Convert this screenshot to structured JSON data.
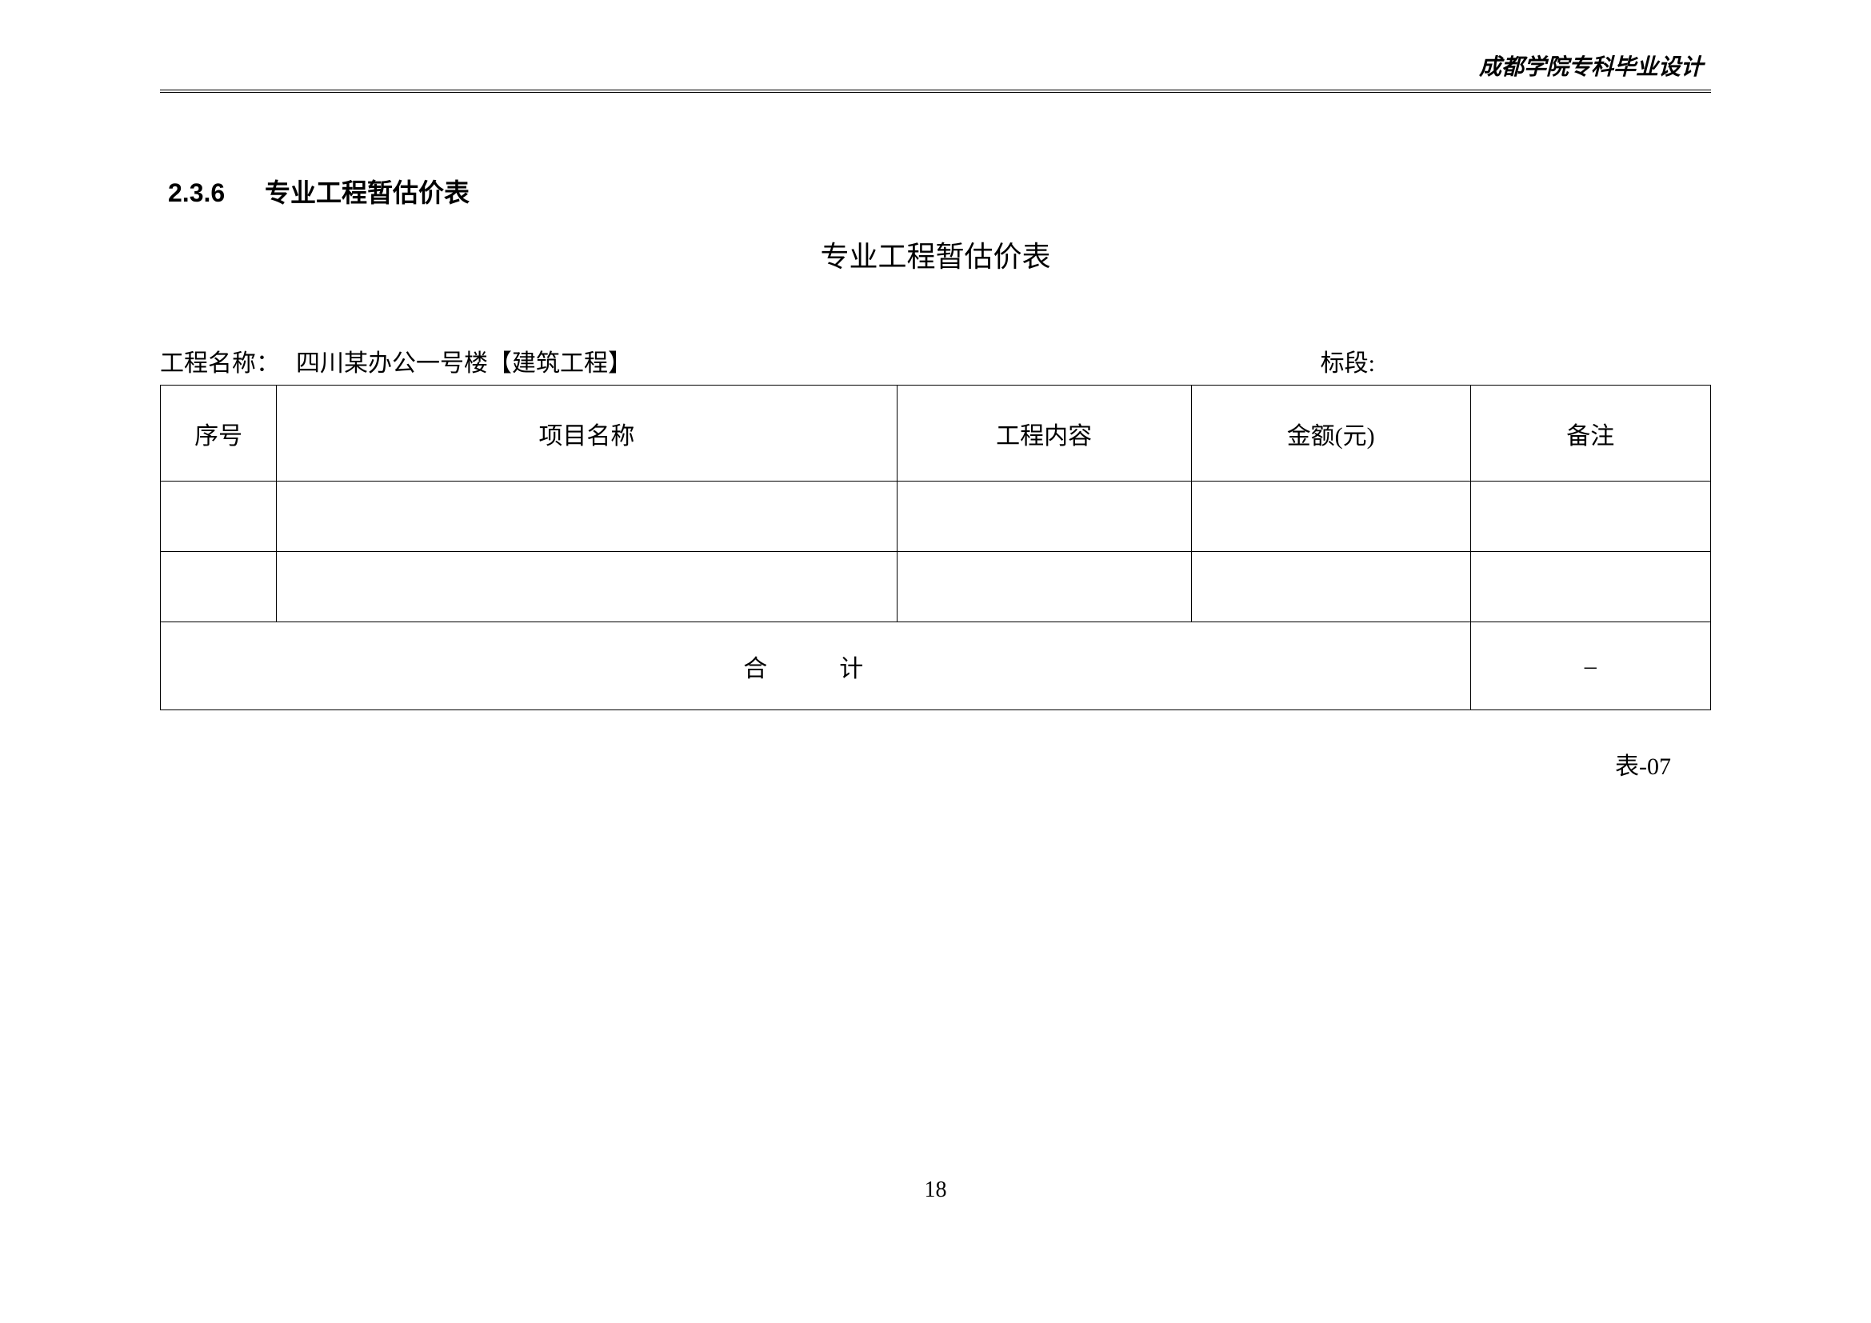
{
  "header": {
    "institution": "成都学院专科毕业设计"
  },
  "section": {
    "number": "2.3.6",
    "title": "专业工程暂估价表"
  },
  "table": {
    "title": "专业工程暂估价表",
    "meta": {
      "project_label": "工程名称：",
      "project_value": "四川某办公一号楼【建筑工程】",
      "section_label": "标段:"
    },
    "columns": [
      "序号",
      "项目名称",
      "工程内容",
      "金额(元)",
      "备注"
    ],
    "rows": [
      [
        "",
        "",
        "",
        "",
        ""
      ],
      [
        "",
        "",
        "",
        "",
        ""
      ]
    ],
    "total": {
      "label": "合　计",
      "amount": "",
      "remark": "–"
    },
    "footer": "表-07"
  },
  "page_number": "18",
  "style": {
    "background_color": "#ffffff",
    "text_color": "#000000",
    "border_color": "#000000",
    "title_fontsize": 32,
    "table_title_fontsize": 36,
    "cell_fontsize": 30,
    "header_fontsize": 28
  }
}
